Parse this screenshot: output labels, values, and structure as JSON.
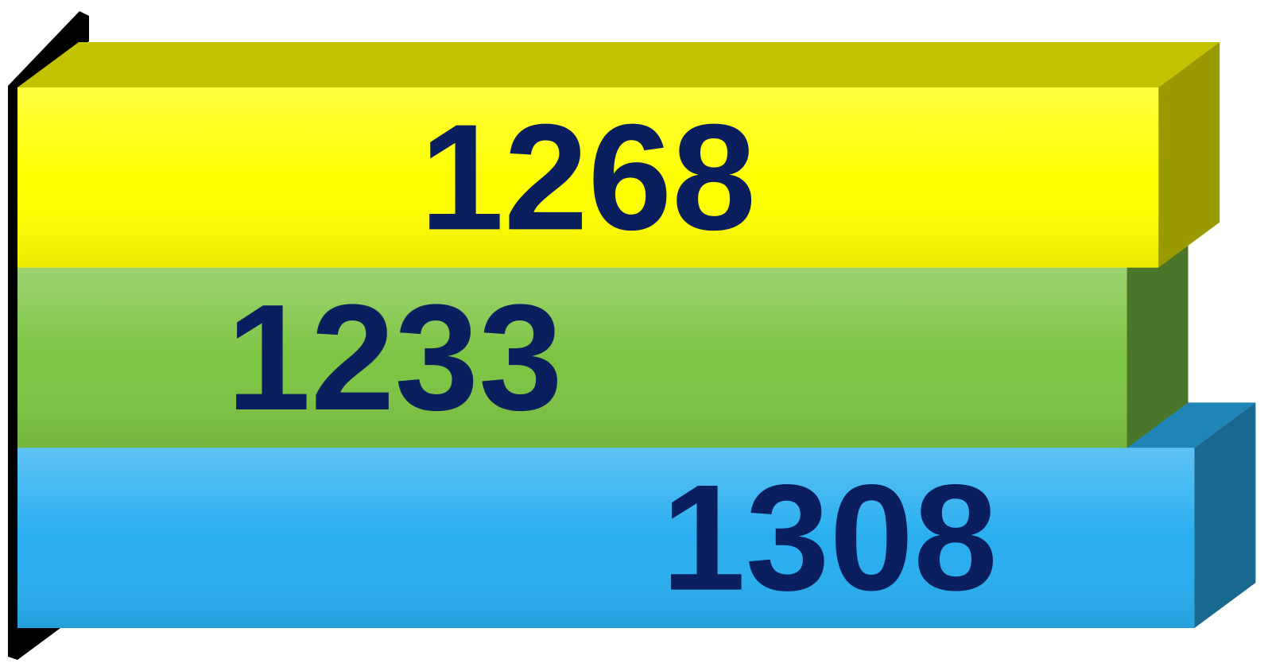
{
  "chart_data": {
    "type": "bar3d",
    "orientation": "horizontal",
    "values": [
      1268,
      1233,
      1308
    ],
    "colors": [
      "#ffff00",
      "#7dc443",
      "#29aef0"
    ],
    "xlim": [
      0,
      1320
    ]
  }
}
